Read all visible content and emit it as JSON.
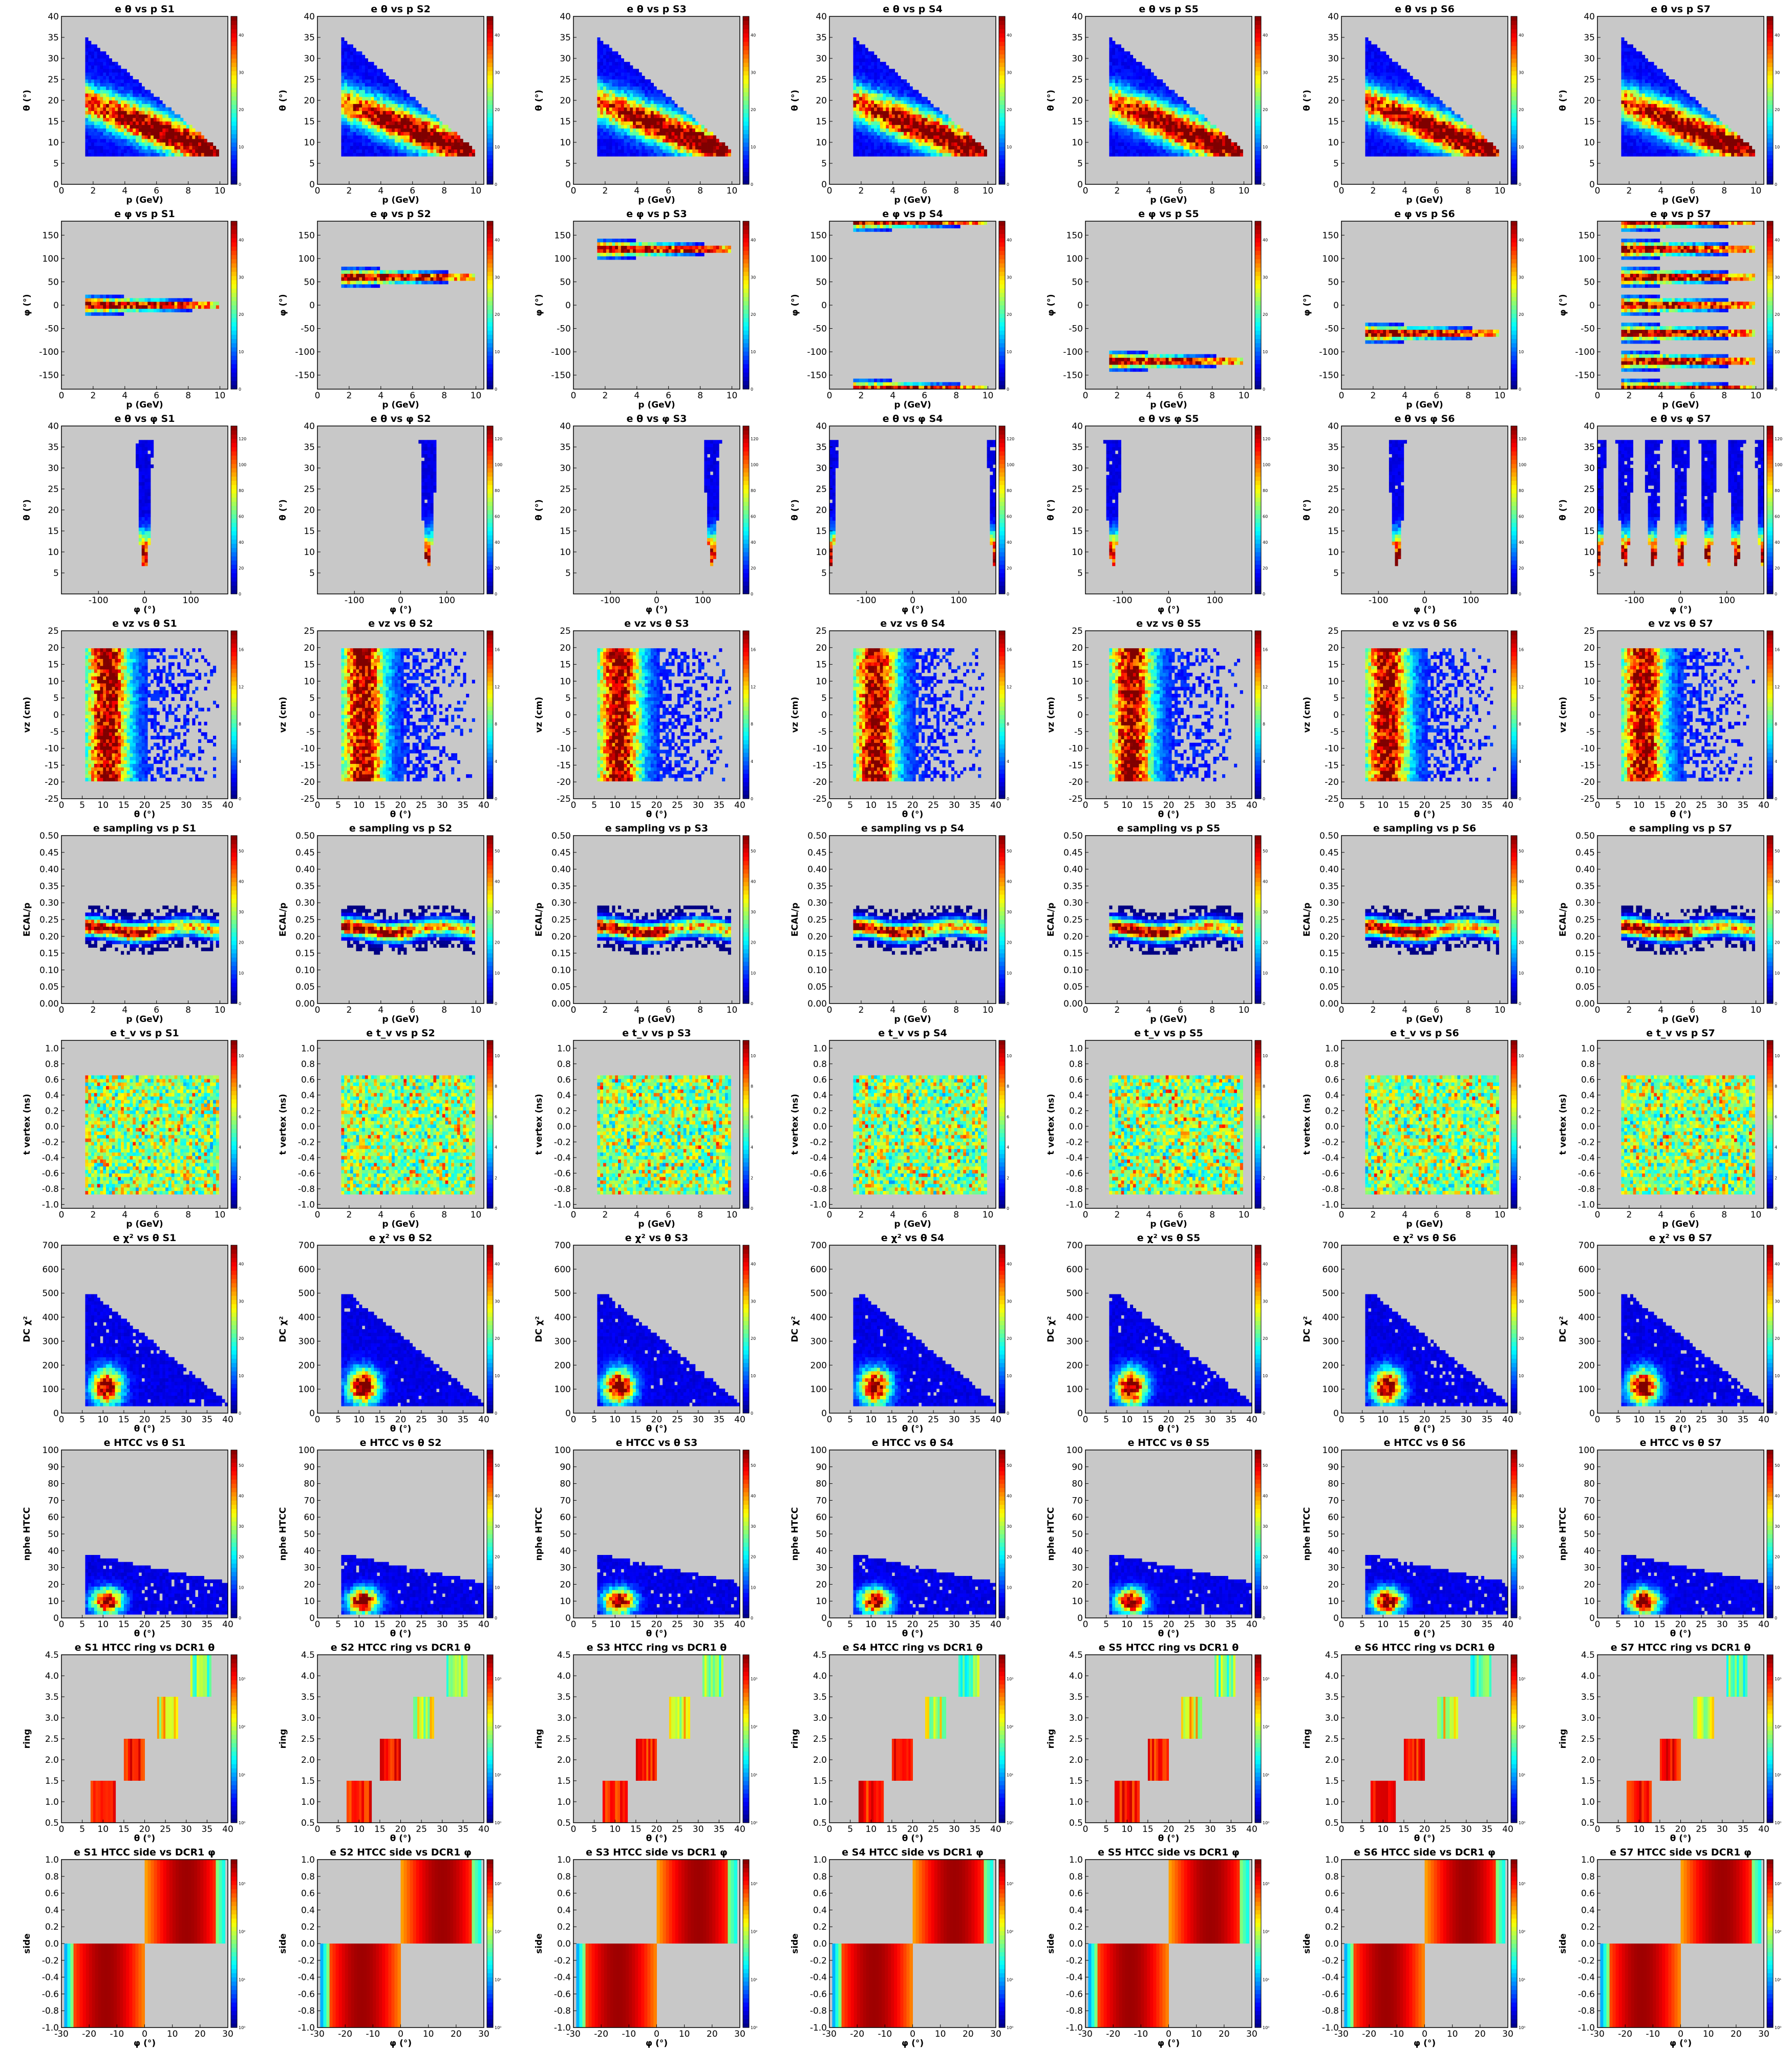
{
  "sectors": [
    "S1",
    "S2",
    "S3",
    "S4",
    "S5",
    "S6",
    "S7"
  ],
  "colors": {
    "background": "#c8c8c8",
    "gradient": [
      "#00007f",
      "#0000ff",
      "#007fff",
      "#00ffff",
      "#7fff7f",
      "#ffff00",
      "#ff7f00",
      "#ff0000",
      "#7f0000"
    ]
  },
  "chart_data": [
    {
      "row": 0,
      "type": "heatmap",
      "title_prefix": "e θ vs p",
      "xlabel": "p (GeV)",
      "ylabel": "θ (°)",
      "xlim": [
        0,
        10.5
      ],
      "ylim": [
        0,
        40
      ],
      "xticks": [
        "0",
        "2",
        "4",
        "6",
        "8",
        "10"
      ],
      "yticks": [
        "0",
        "5",
        "10",
        "15",
        "20",
        "25",
        "30",
        "35",
        "40"
      ],
      "cbar": [
        "0",
        "10",
        "20",
        "30",
        "40"
      ]
    },
    {
      "row": 1,
      "type": "heatmap",
      "title_prefix": "e φ vs p",
      "xlabel": "p (GeV)",
      "ylabel": "φ (°)",
      "xlim": [
        0,
        10.5
      ],
      "ylim": [
        -180,
        180
      ],
      "xticks": [
        "0",
        "2",
        "4",
        "6",
        "8",
        "10"
      ],
      "yticks": [
        "-150",
        "-100",
        "-50",
        "0",
        "50",
        "100",
        "150"
      ],
      "cbar": [
        "0",
        "10",
        "20",
        "30",
        "40"
      ]
    },
    {
      "row": 2,
      "type": "heatmap",
      "title_prefix": "e θ vs φ",
      "xlabel": "φ (°)",
      "ylabel": "θ (°)",
      "xlim": [
        -180,
        180
      ],
      "ylim": [
        0,
        40
      ],
      "xticks": [
        "-100",
        "0",
        "100"
      ],
      "yticks": [
        "5",
        "10",
        "15",
        "20",
        "25",
        "30",
        "35",
        "40"
      ],
      "cbar": [
        "0",
        "20",
        "40",
        "60",
        "80",
        "100",
        "120"
      ]
    },
    {
      "row": 3,
      "type": "heatmap",
      "title_prefix": "e vz vs θ",
      "xlabel": "θ (°)",
      "ylabel": "vz (cm)",
      "xlim": [
        0,
        40
      ],
      "ylim": [
        -25,
        25
      ],
      "xticks": [
        "0",
        "5",
        "10",
        "15",
        "20",
        "25",
        "30",
        "35",
        "40"
      ],
      "yticks": [
        "-25",
        "-20",
        "-15",
        "-10",
        "-5",
        "0",
        "5",
        "10",
        "15",
        "20",
        "25"
      ],
      "cbar": [
        "0",
        "4",
        "8",
        "12",
        "16"
      ]
    },
    {
      "row": 4,
      "type": "heatmap",
      "title_prefix": "e sampling vs p",
      "xlabel": "p (GeV)",
      "ylabel": "ECAL/p",
      "xlim": [
        0,
        10.5
      ],
      "ylim": [
        0,
        0.5
      ],
      "xticks": [
        "0",
        "2",
        "4",
        "6",
        "8",
        "10"
      ],
      "yticks": [
        "0.00",
        "0.05",
        "0.10",
        "0.15",
        "0.20",
        "0.25",
        "0.30",
        "0.35",
        "0.40",
        "0.45",
        "0.50"
      ],
      "cbar": [
        "0",
        "10",
        "20",
        "30",
        "40",
        "50"
      ]
    },
    {
      "row": 5,
      "type": "heatmap",
      "title_prefix": "e t_v vs p",
      "xlabel": "p (GeV)",
      "ylabel": "t vertex (ns)",
      "xlim": [
        0,
        10.5
      ],
      "ylim": [
        -1.05,
        1.1
      ],
      "xticks": [
        "0",
        "2",
        "4",
        "6",
        "8",
        "10"
      ],
      "yticks": [
        "-1.0",
        "-0.8",
        "-0.6",
        "-0.4",
        "-0.2",
        "0.0",
        "0.2",
        "0.4",
        "0.6",
        "0.8",
        "1.0"
      ],
      "cbar": [
        "0",
        "2",
        "4",
        "6",
        "8",
        "10"
      ]
    },
    {
      "row": 6,
      "type": "heatmap",
      "title_prefix": "e χ² vs θ",
      "xlabel": "θ (°)",
      "ylabel": "DC χ²",
      "xlim": [
        0,
        40
      ],
      "ylim": [
        0,
        700
      ],
      "xticks": [
        "0",
        "5",
        "10",
        "15",
        "20",
        "25",
        "30",
        "35",
        "40"
      ],
      "yticks": [
        "0",
        "100",
        "200",
        "300",
        "400",
        "500",
        "600",
        "700"
      ],
      "cbar": [
        "0",
        "10",
        "20",
        "30",
        "40"
      ]
    },
    {
      "row": 7,
      "type": "heatmap",
      "title_prefix": "e HTCC vs θ",
      "xlabel": "θ (°)",
      "ylabel": "nphe HTCC",
      "xlim": [
        0,
        40
      ],
      "ylim": [
        0,
        100
      ],
      "xticks": [
        "0",
        "5",
        "10",
        "15",
        "20",
        "25",
        "30",
        "35",
        "40"
      ],
      "yticks": [
        "0",
        "10",
        "20",
        "30",
        "40",
        "50",
        "60",
        "70",
        "80",
        "90",
        "100"
      ],
      "cbar": [
        "0",
        "10",
        "20",
        "30",
        "40",
        "50"
      ]
    },
    {
      "row": 8,
      "type": "heatmap",
      "title_prefix": "HTCC ring vs DCR1 θ",
      "xlabel": "θ (°)",
      "ylabel": "ring",
      "xlim": [
        0,
        40
      ],
      "ylim": [
        0.5,
        4.5
      ],
      "xticks": [
        "0",
        "5",
        "10",
        "15",
        "20",
        "25",
        "30",
        "35",
        "40"
      ],
      "yticks": [
        "0.5",
        "1.0",
        "1.5",
        "2.0",
        "2.5",
        "3.0",
        "3.5",
        "4.0",
        "4.5"
      ],
      "cbar": [
        "10⁰",
        "10¹",
        "10²",
        "10³"
      ]
    },
    {
      "row": 9,
      "type": "heatmap",
      "title_prefix": "HTCC side vs DCR1 φ",
      "xlabel": "φ (°)",
      "ylabel": "side",
      "xlim": [
        -30,
        30
      ],
      "ylim": [
        -1,
        1
      ],
      "xticks": [
        "-30",
        "-20",
        "-10",
        "0",
        "10",
        "20",
        "30"
      ],
      "yticks": [
        "-1.0",
        "-0.8",
        "-0.6",
        "-0.4",
        "-0.2",
        "0.0",
        "0.2",
        "0.4",
        "0.6",
        "0.8",
        "1.0"
      ],
      "cbar": [
        "10⁰",
        "10¹",
        "10²",
        "10³"
      ]
    }
  ]
}
